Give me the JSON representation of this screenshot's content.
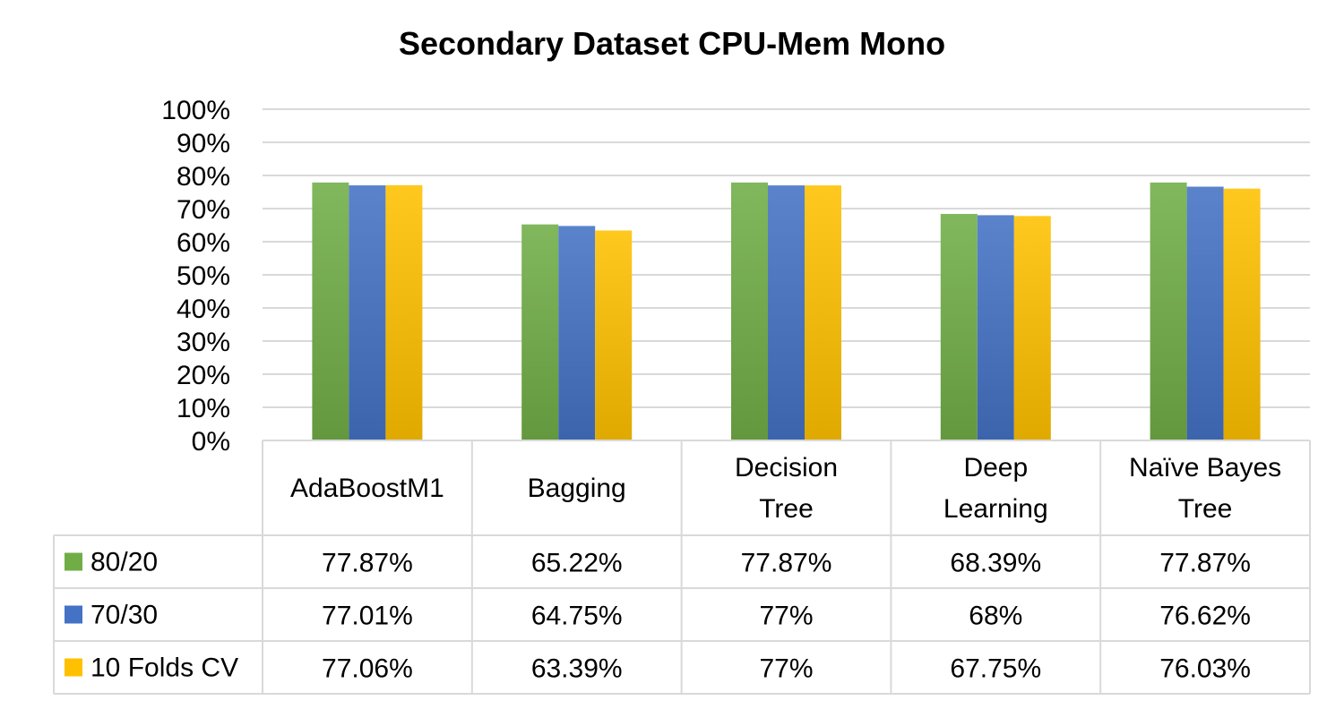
{
  "chart_data": {
    "type": "bar",
    "title": "Secondary Dataset CPU-Mem Mono",
    "categories": [
      "AdaBoostM1",
      "Bagging",
      "Decision Tree",
      "Deep Learning",
      "Naïve Bayes Tree"
    ],
    "category_lines": [
      [
        "AdaBoostM1"
      ],
      [
        "Bagging"
      ],
      [
        "Decision",
        "Tree"
      ],
      [
        "Deep",
        "Learning"
      ],
      [
        "Naïve Bayes",
        "Tree"
      ]
    ],
    "y_ticks": [
      "0%",
      "10%",
      "20%",
      "30%",
      "40%",
      "50%",
      "60%",
      "70%",
      "80%",
      "90%",
      "100%"
    ],
    "ylim": [
      0,
      100
    ],
    "grid": true,
    "legend": "data table",
    "series": [
      {
        "name": "80/20",
        "color": "#70ad47",
        "values": [
          77.87,
          65.22,
          77.87,
          68.39,
          77.87
        ],
        "labels": [
          "77.87%",
          "65.22%",
          "77.87%",
          "68.39%",
          "77.87%"
        ]
      },
      {
        "name": "70/30",
        "color": "#4472c4",
        "values": [
          77.01,
          64.75,
          77,
          68,
          76.62
        ],
        "labels": [
          "77.01%",
          "64.75%",
          "77%",
          "68%",
          "76.62%"
        ]
      },
      {
        "name": "10 Folds CV",
        "color": "#ffc000",
        "values": [
          77.06,
          63.39,
          77,
          67.75,
          76.03
        ],
        "labels": [
          "77.06%",
          "63.39%",
          "77%",
          "67.75%",
          "76.03%"
        ]
      }
    ]
  }
}
